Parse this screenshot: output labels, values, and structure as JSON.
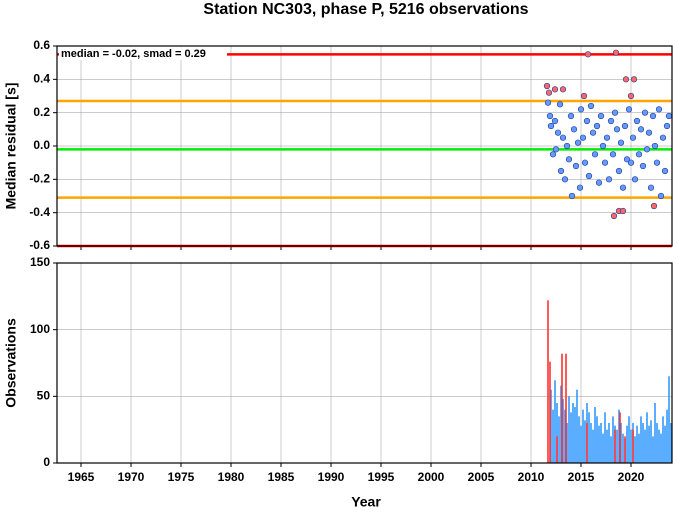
{
  "chart_data": [
    {
      "type": "scatter",
      "title": "Station NC303, phase P, 5216 observations",
      "annotation": "median = -0.02, smad = 0.29",
      "ylabel": "Median residual [s]",
      "xlim": [
        1962.6,
        2024.1
      ],
      "xticks": [
        1965,
        1970,
        1975,
        1980,
        1985,
        1990,
        1995,
        2000,
        2005,
        2010,
        2015,
        2020
      ],
      "ylim": [
        -0.6,
        0.6
      ],
      "yticks": [
        0.6,
        0.4,
        0.2,
        {
          "value": 0,
          "label": "0.0"
        },
        -0.2,
        -0.4,
        -0.6
      ],
      "grid": true,
      "hlines": [
        {
          "value": 0.55,
          "color": "#ff0000"
        },
        {
          "value": 0.27,
          "color": "#ffa500"
        },
        {
          "value": -0.02,
          "color": "#00ee00"
        },
        {
          "value": -0.31,
          "color": "#ffa500"
        },
        {
          "value": -0.6,
          "color": "#ff0000"
        }
      ],
      "series": [
        {
          "color": "#6699ff",
          "x": [
            2011.7,
            2011.9,
            2012.0,
            2012.2,
            2012.4,
            2012.5,
            2012.7,
            2012.9,
            2013.0,
            2013.2,
            2013.4,
            2013.6,
            2013.8,
            2014.0,
            2014.1,
            2014.3,
            2014.5,
            2014.7,
            2014.9,
            2015.0,
            2015.2,
            2015.4,
            2015.6,
            2015.8,
            2016.0,
            2016.2,
            2016.4,
            2016.6,
            2016.8,
            2017.0,
            2017.2,
            2017.4,
            2017.6,
            2017.8,
            2018.0,
            2018.2,
            2018.4,
            2018.6,
            2018.8,
            2019.0,
            2019.2,
            2019.4,
            2019.6,
            2019.8,
            2020.0,
            2020.2,
            2020.4,
            2020.6,
            2020.8,
            2021.0,
            2021.2,
            2021.4,
            2021.6,
            2021.8,
            2022.0,
            2022.2,
            2022.4,
            2022.6,
            2022.8,
            2023.0,
            2023.2,
            2023.4,
            2023.6,
            2023.8
          ],
          "y": [
            0.26,
            0.18,
            0.12,
            -0.05,
            0.15,
            -0.02,
            0.08,
            0.25,
            -0.15,
            0.05,
            -0.2,
            0.0,
            -0.08,
            0.18,
            -0.3,
            0.1,
            -0.12,
            0.02,
            -0.25,
            0.22,
            0.05,
            -0.1,
            0.15,
            -0.18,
            0.24,
            0.08,
            -0.05,
            0.12,
            -0.22,
            0.18,
            0.0,
            -0.1,
            0.05,
            -0.2,
            0.15,
            -0.05,
            0.2,
            0.1,
            -0.15,
            0.02,
            -0.25,
            0.12,
            -0.08,
            0.22,
            -0.1,
            0.05,
            -0.2,
            0.15,
            -0.05,
            0.1,
            -0.12,
            0.2,
            -0.02,
            0.08,
            -0.25,
            0.18,
            0.0,
            -0.1,
            0.22,
            -0.3,
            0.05,
            -0.15,
            0.12,
            0.18
          ]
        },
        {
          "color": "#ff6666",
          "x": [
            2011.6,
            2011.8,
            2012.4,
            2013.2,
            2015.3,
            2015.7,
            2018.5,
            2018.3,
            2018.8,
            2019.2,
            2019.5,
            2020.0,
            2020.3,
            2022.3
          ],
          "y": [
            0.36,
            0.32,
            0.34,
            0.34,
            0.3,
            0.55,
            0.56,
            -0.42,
            -0.39,
            -0.39,
            0.4,
            0.3,
            0.4,
            -0.36
          ]
        }
      ]
    },
    {
      "type": "bar",
      "ylabel": "Observations",
      "xlabel": "Year",
      "xlim": [
        1962.6,
        2024.1
      ],
      "xticks": [
        1965,
        1970,
        1975,
        1980,
        1985,
        1990,
        1995,
        2000,
        2005,
        2010,
        2015,
        2020
      ],
      "ylim": [
        0,
        150
      ],
      "yticks": [
        0,
        50,
        100,
        150
      ],
      "grid": true,
      "series": [
        {
          "color": "#3399ff",
          "x": [
            2012.0,
            2012.2,
            2012.4,
            2012.6,
            2012.8,
            2013.0,
            2013.2,
            2013.4,
            2013.6,
            2013.8,
            2014.0,
            2014.2,
            2014.4,
            2014.6,
            2014.8,
            2015.0,
            2015.2,
            2015.4,
            2015.6,
            2015.8,
            2016.0,
            2016.2,
            2016.4,
            2016.6,
            2016.8,
            2017.0,
            2017.2,
            2017.4,
            2017.6,
            2017.8,
            2018.0,
            2018.2,
            2018.4,
            2018.6,
            2018.8,
            2019.0,
            2019.2,
            2019.4,
            2019.6,
            2019.8,
            2020.0,
            2020.2,
            2020.4,
            2020.6,
            2020.8,
            2021.0,
            2021.2,
            2021.4,
            2021.6,
            2021.8,
            2022.0,
            2022.2,
            2022.4,
            2022.6,
            2022.8,
            2023.0,
            2023.2,
            2023.4,
            2023.6,
            2023.8,
            2024.0
          ],
          "values": [
            55,
            40,
            62,
            45,
            35,
            58,
            48,
            40,
            30,
            50,
            38,
            45,
            42,
            55,
            35,
            28,
            40,
            32,
            45,
            38,
            30,
            25,
            42,
            35,
            28,
            30,
            22,
            38,
            25,
            30,
            20,
            35,
            28,
            25,
            40,
            30,
            22,
            18,
            28,
            35,
            25,
            30,
            20,
            28,
            22,
            35,
            30,
            25,
            38,
            28,
            32,
            20,
            45,
            30,
            25,
            22,
            35,
            28,
            40,
            65,
            30
          ]
        },
        {
          "color": "#ff3333",
          "x": [
            2011.7,
            2011.9,
            2012.6,
            2013.1,
            2013.5,
            2015.6,
            2018.4,
            2018.9,
            2019.4,
            2020.2
          ],
          "values": [
            122,
            76,
            20,
            82,
            82,
            30,
            25,
            38,
            20,
            25
          ]
        }
      ]
    }
  ]
}
